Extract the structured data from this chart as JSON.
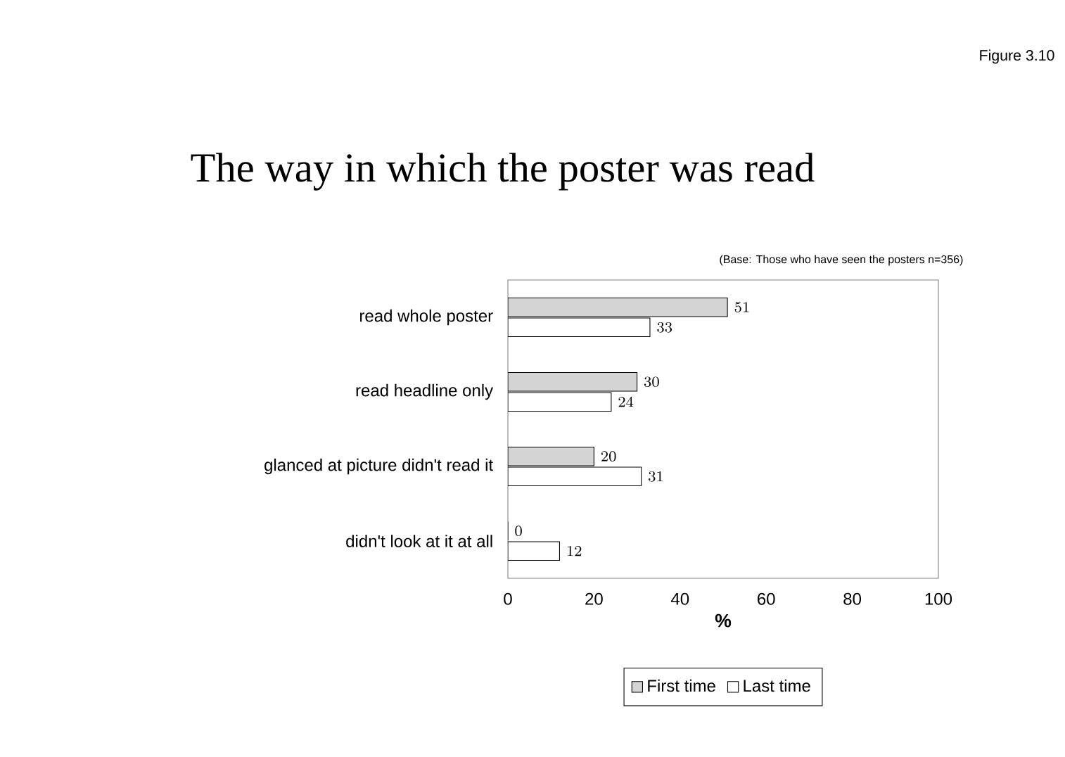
{
  "chart_data": {
    "type": "bar",
    "orientation": "horizontal",
    "title": "The way in which the poster was read",
    "subtitle": "(Base: Those who have seen the posters n=356)",
    "annotations": [
      "Figure 3.10"
    ],
    "xlabel": "%",
    "categories": [
      "read whole poster",
      "read headline only",
      "glanced at picture didn't read it",
      "didn't look at it at all"
    ],
    "series": [
      {
        "name": "First time",
        "color": "#d4d4d4",
        "values": [
          51,
          30,
          20,
          0
        ]
      },
      {
        "name": "Last time",
        "color": "#ffffff",
        "values": [
          33,
          24,
          31,
          12
        ]
      }
    ],
    "xlim": [
      0,
      100
    ],
    "xticks": [
      0,
      20,
      40,
      60,
      80,
      100
    ],
    "data_labels": true,
    "legend": "bottom",
    "grid": false
  }
}
